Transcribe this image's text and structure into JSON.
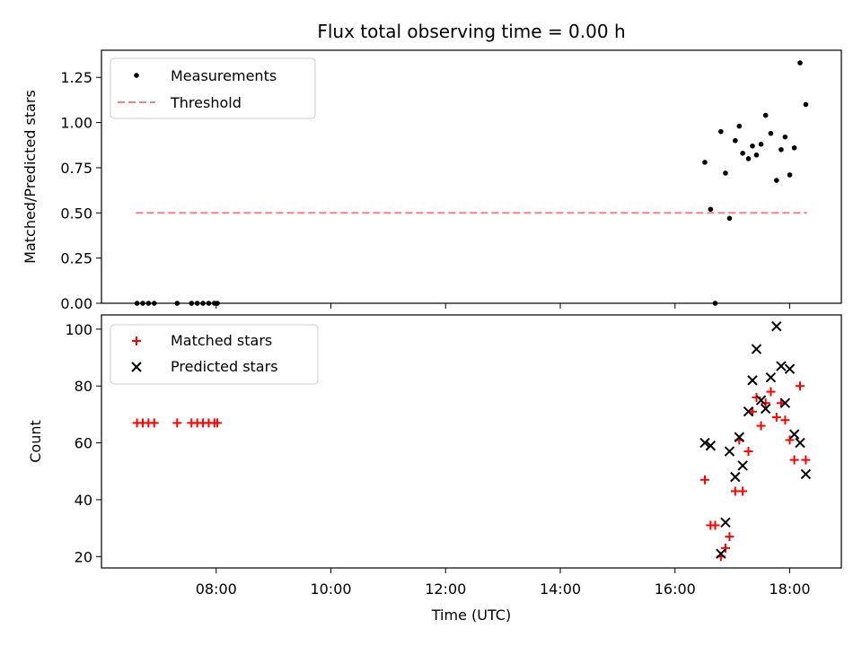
{
  "chart_data": [
    {
      "type": "scatter",
      "title": "Flux total observing time = 0.00 h",
      "xlabel": "",
      "ylabel": "Matched/Predicted stars",
      "x_unit": "hours (UTC)",
      "xlim": [
        6.0,
        18.9
      ],
      "ylim": [
        0.0,
        1.4
      ],
      "yticks": [
        "0.00",
        "0.25",
        "0.50",
        "0.75",
        "1.00",
        "1.25"
      ],
      "ytick_values": [
        0.0,
        0.25,
        0.5,
        0.75,
        1.0,
        1.25
      ],
      "grid": false,
      "legend_position": "top-left",
      "series": [
        {
          "name": "Measurements",
          "marker": "dot",
          "color": "#000000",
          "points": [
            [
              6.62,
              0.0
            ],
            [
              6.72,
              0.0
            ],
            [
              6.82,
              0.0
            ],
            [
              6.92,
              0.0
            ],
            [
              7.32,
              0.0
            ],
            [
              7.57,
              0.0
            ],
            [
              7.67,
              0.0
            ],
            [
              7.77,
              0.0
            ],
            [
              7.87,
              0.0
            ],
            [
              7.97,
              0.0
            ],
            [
              8.02,
              0.0
            ],
            [
              16.52,
              0.78
            ],
            [
              16.62,
              0.52
            ],
            [
              16.7,
              0.0
            ],
            [
              16.8,
              0.95
            ],
            [
              16.88,
              0.72
            ],
            [
              16.95,
              0.47
            ],
            [
              17.05,
              0.9
            ],
            [
              17.12,
              0.98
            ],
            [
              17.18,
              0.83
            ],
            [
              17.28,
              0.8
            ],
            [
              17.35,
              0.87
            ],
            [
              17.42,
              0.82
            ],
            [
              17.5,
              0.88
            ],
            [
              17.58,
              1.04
            ],
            [
              17.67,
              0.94
            ],
            [
              17.77,
              0.68
            ],
            [
              17.85,
              0.85
            ],
            [
              17.92,
              0.92
            ],
            [
              18.0,
              0.71
            ],
            [
              18.08,
              0.86
            ],
            [
              18.18,
              1.33
            ],
            [
              18.28,
              1.1
            ]
          ]
        },
        {
          "name": "Threshold",
          "style": "dashed",
          "color": "#ff7f7f",
          "points": [
            [
              6.6,
              0.5
            ],
            [
              18.3,
              0.5
            ]
          ]
        }
      ]
    },
    {
      "type": "scatter",
      "title": "",
      "xlabel": "Time (UTC)",
      "ylabel": "Count",
      "x_unit": "hours (UTC)",
      "xlim": [
        6.0,
        18.9
      ],
      "ylim": [
        16,
        105
      ],
      "yticks": [
        "20",
        "40",
        "60",
        "80",
        "100"
      ],
      "ytick_values": [
        20,
        40,
        60,
        80,
        100
      ],
      "xticks": [
        "08:00",
        "10:00",
        "12:00",
        "14:00",
        "16:00",
        "18:00"
      ],
      "xtick_values": [
        8,
        10,
        12,
        14,
        16,
        18
      ],
      "grid": false,
      "legend_position": "top-left",
      "series": [
        {
          "name": "Matched stars",
          "marker": "plus",
          "color": "#ff0000",
          "points": [
            [
              6.62,
              67
            ],
            [
              6.72,
              67
            ],
            [
              6.82,
              67
            ],
            [
              6.92,
              67
            ],
            [
              7.32,
              67
            ],
            [
              7.57,
              67
            ],
            [
              7.67,
              67
            ],
            [
              7.77,
              67
            ],
            [
              7.87,
              67
            ],
            [
              7.97,
              67
            ],
            [
              8.02,
              67
            ],
            [
              16.52,
              47
            ],
            [
              16.62,
              31
            ],
            [
              16.7,
              31
            ],
            [
              16.8,
              20
            ],
            [
              16.88,
              23
            ],
            [
              16.95,
              27
            ],
            [
              17.05,
              43
            ],
            [
              17.12,
              61
            ],
            [
              17.18,
              43
            ],
            [
              17.28,
              57
            ],
            [
              17.35,
              71
            ],
            [
              17.42,
              76
            ],
            [
              17.5,
              66
            ],
            [
              17.58,
              74
            ],
            [
              17.67,
              78
            ],
            [
              17.77,
              69
            ],
            [
              17.85,
              74
            ],
            [
              17.92,
              68
            ],
            [
              18.0,
              61
            ],
            [
              18.08,
              54
            ],
            [
              18.18,
              80
            ],
            [
              18.28,
              54
            ]
          ]
        },
        {
          "name": "Predicted stars",
          "marker": "x",
          "color": "#000000",
          "points": [
            [
              16.52,
              60
            ],
            [
              16.62,
              59
            ],
            [
              16.8,
              21
            ],
            [
              16.88,
              32
            ],
            [
              16.95,
              57
            ],
            [
              17.05,
              48
            ],
            [
              17.12,
              62
            ],
            [
              17.18,
              52
            ],
            [
              17.28,
              71
            ],
            [
              17.35,
              82
            ],
            [
              17.42,
              93
            ],
            [
              17.5,
              75
            ],
            [
              17.58,
              72
            ],
            [
              17.67,
              83
            ],
            [
              17.77,
              101
            ],
            [
              17.85,
              87
            ],
            [
              17.92,
              74
            ],
            [
              18.0,
              86
            ],
            [
              18.08,
              63
            ],
            [
              18.18,
              60
            ],
            [
              18.28,
              49
            ]
          ]
        }
      ]
    }
  ]
}
